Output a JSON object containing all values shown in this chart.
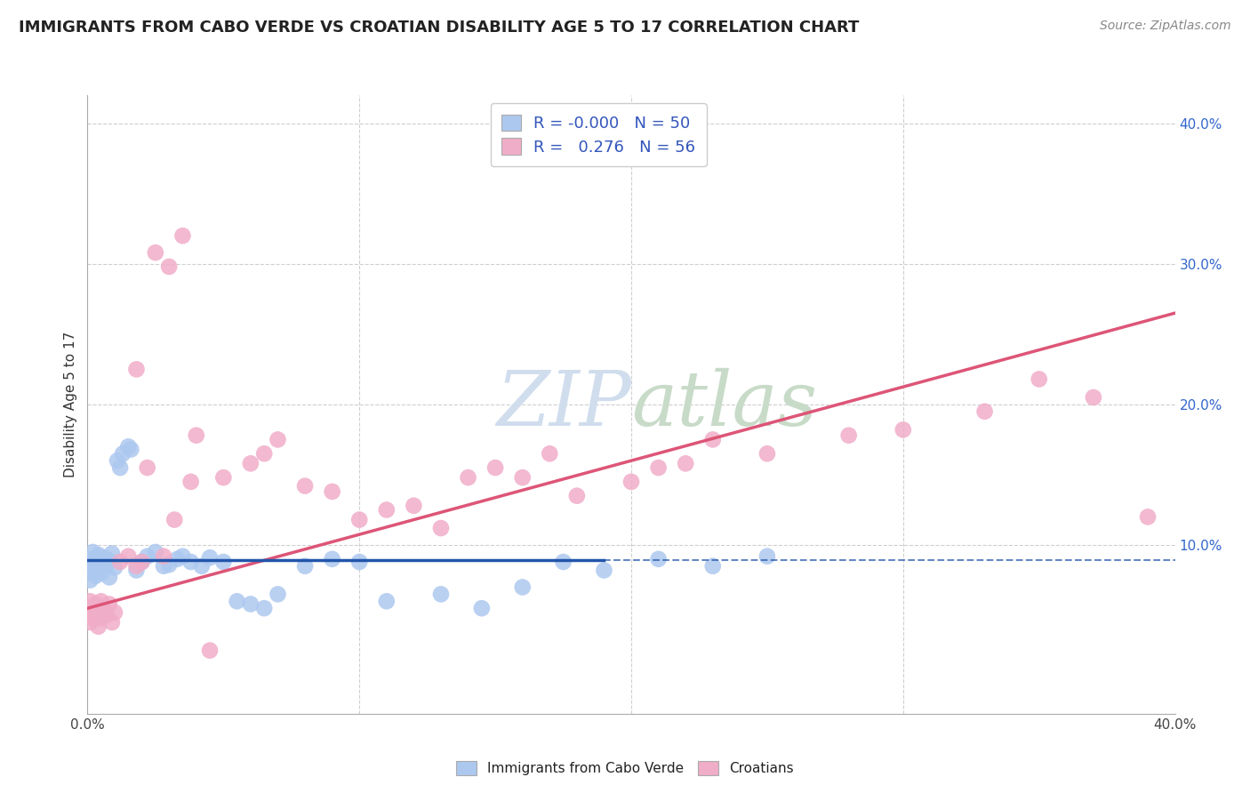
{
  "title": "IMMIGRANTS FROM CABO VERDE VS CROATIAN DISABILITY AGE 5 TO 17 CORRELATION CHART",
  "source": "Source: ZipAtlas.com",
  "ylabel": "Disability Age 5 to 17",
  "xlim": [
    0.0,
    0.4
  ],
  "ylim": [
    -0.02,
    0.42
  ],
  "xticks": [
    0.0,
    0.1,
    0.2,
    0.3,
    0.4
  ],
  "yticks": [
    0.0,
    0.1,
    0.2,
    0.3,
    0.4
  ],
  "xticklabels": [
    "0.0%",
    "",
    "",
    "",
    "40.0%"
  ],
  "yticklabels_right": [
    "",
    "10.0%",
    "20.0%",
    "30.0%",
    "40.0%"
  ],
  "legend_labels": [
    "Immigrants from Cabo Verde",
    "Croatians"
  ],
  "cabo_verde_R": "-0.000",
  "cabo_verde_N": 50,
  "croatian_R": "0.276",
  "croatian_N": 56,
  "cabo_verde_color": "#adc8ef",
  "croatian_color": "#f0adc8",
  "cabo_verde_line_color": "#2255aa",
  "croatian_line_color": "#dd5577",
  "grid_color": "#bbbbbb",
  "background_color": "#ffffff",
  "watermark_color": "#d0dded",
  "cabo_verde_line_y": 0.089,
  "croatian_line_start": 0.055,
  "croatian_line_end": 0.265,
  "cabo_verde_x": [
    0.001,
    0.001,
    0.001,
    0.002,
    0.002,
    0.003,
    0.003,
    0.004,
    0.004,
    0.005,
    0.005,
    0.006,
    0.007,
    0.008,
    0.008,
    0.009,
    0.01,
    0.011,
    0.012,
    0.013,
    0.015,
    0.016,
    0.018,
    0.02,
    0.022,
    0.025,
    0.028,
    0.03,
    0.033,
    0.035,
    0.038,
    0.042,
    0.045,
    0.05,
    0.055,
    0.06,
    0.065,
    0.07,
    0.08,
    0.09,
    0.1,
    0.11,
    0.13,
    0.145,
    0.16,
    0.175,
    0.19,
    0.21,
    0.23,
    0.25
  ],
  "cabo_verde_y": [
    0.09,
    0.082,
    0.075,
    0.095,
    0.085,
    0.088,
    0.078,
    0.093,
    0.083,
    0.087,
    0.08,
    0.091,
    0.086,
    0.089,
    0.077,
    0.094,
    0.084,
    0.16,
    0.155,
    0.165,
    0.17,
    0.168,
    0.082,
    0.088,
    0.092,
    0.095,
    0.085,
    0.086,
    0.09,
    0.092,
    0.088,
    0.085,
    0.091,
    0.088,
    0.06,
    0.058,
    0.055,
    0.065,
    0.085,
    0.09,
    0.088,
    0.06,
    0.065,
    0.055,
    0.07,
    0.088,
    0.082,
    0.09,
    0.085,
    0.092
  ],
  "croatian_x": [
    0.001,
    0.001,
    0.001,
    0.002,
    0.002,
    0.003,
    0.003,
    0.004,
    0.004,
    0.005,
    0.005,
    0.006,
    0.007,
    0.008,
    0.009,
    0.01,
    0.012,
    0.015,
    0.018,
    0.02,
    0.025,
    0.03,
    0.035,
    0.04,
    0.05,
    0.06,
    0.065,
    0.07,
    0.08,
    0.09,
    0.1,
    0.11,
    0.12,
    0.13,
    0.14,
    0.15,
    0.16,
    0.17,
    0.18,
    0.2,
    0.21,
    0.22,
    0.23,
    0.25,
    0.28,
    0.3,
    0.33,
    0.35,
    0.37,
    0.39,
    0.018,
    0.022,
    0.028,
    0.032,
    0.038,
    0.045
  ],
  "croatian_y": [
    0.06,
    0.055,
    0.045,
    0.052,
    0.048,
    0.058,
    0.05,
    0.055,
    0.042,
    0.06,
    0.048,
    0.055,
    0.05,
    0.058,
    0.045,
    0.052,
    0.088,
    0.092,
    0.085,
    0.088,
    0.308,
    0.298,
    0.32,
    0.178,
    0.148,
    0.158,
    0.165,
    0.175,
    0.142,
    0.138,
    0.118,
    0.125,
    0.128,
    0.112,
    0.148,
    0.155,
    0.148,
    0.165,
    0.135,
    0.145,
    0.155,
    0.158,
    0.175,
    0.165,
    0.178,
    0.182,
    0.195,
    0.218,
    0.205,
    0.12,
    0.225,
    0.155,
    0.092,
    0.118,
    0.145,
    0.025
  ]
}
